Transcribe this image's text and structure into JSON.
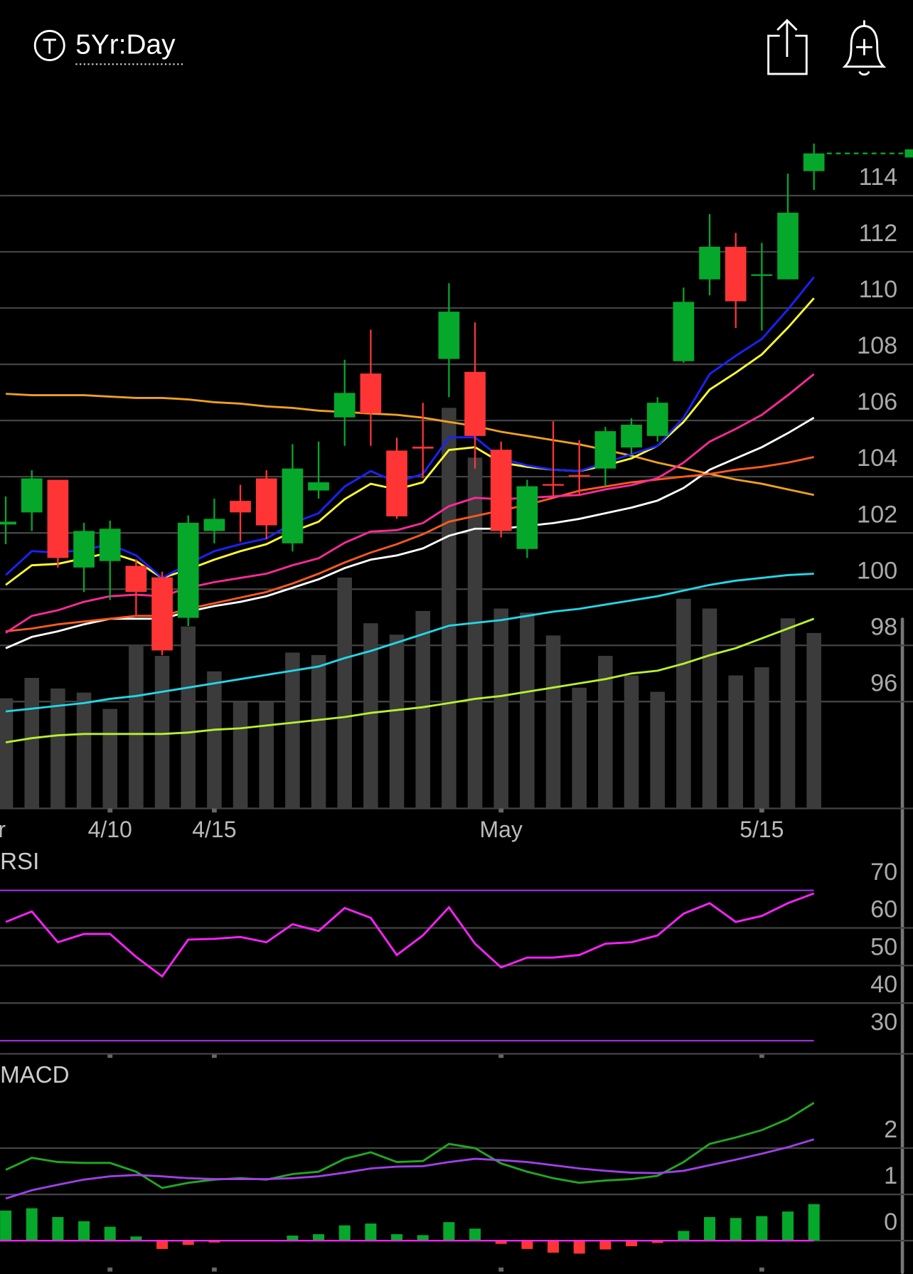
{
  "header": {
    "timeframe": "5Yr:Day"
  },
  "chart_data": [
    {
      "type": "candlestick",
      "categories": [
        "r",
        null,
        null,
        null,
        "4/10",
        null,
        null,
        null,
        "4/15",
        null,
        null,
        null,
        null,
        null,
        null,
        null,
        null,
        null,
        null,
        "May",
        null,
        null,
        null,
        null,
        null,
        null,
        null,
        null,
        null,
        "5/15",
        null,
        null
      ],
      "open": [
        102.3,
        102.73,
        103.89,
        100.77,
        101.0,
        100.83,
        100.42,
        98.98,
        102.07,
        103.14,
        103.94,
        101.63,
        103.51,
        106.11,
        107.67,
        104.93,
        105.07,
        108.19,
        107.73,
        104.96,
        101.43,
        103.74,
        104.06,
        104.29,
        105.04,
        105.45,
        108.11,
        111.02,
        112.18,
        111.15,
        111.02,
        114.87
      ],
      "high": [
        103.3,
        104.23,
        103.89,
        102.36,
        102.44,
        101.06,
        100.62,
        102.62,
        103.22,
        103.71,
        104.23,
        105.16,
        105.25,
        108.16,
        109.23,
        105.39,
        106.63,
        110.88,
        109.49,
        105.25,
        103.89,
        105.97,
        105.3,
        105.77,
        106.08,
        106.83,
        110.73,
        113.34,
        112.67,
        112.32,
        114.78,
        115.85
      ],
      "low": [
        101.6,
        102.07,
        100.77,
        99.9,
        99.61,
        99.03,
        97.65,
        98.69,
        101.63,
        101.69,
        101.78,
        101.34,
        103.22,
        105.1,
        105.1,
        102.5,
        103.94,
        106.83,
        104.29,
        101.84,
        101.11,
        103.31,
        103.31,
        103.66,
        104.81,
        105.25,
        108.05,
        110.45,
        109.29,
        109.2,
        111.02,
        114.2
      ],
      "close": [
        102.4,
        103.94,
        101.11,
        102.07,
        102.15,
        99.9,
        97.82,
        102.36,
        102.5,
        102.73,
        102.27,
        104.29,
        103.8,
        106.98,
        106.26,
        102.59,
        105.0,
        109.87,
        105.45,
        102.07,
        103.66,
        103.68,
        104.0,
        105.62,
        105.85,
        106.63,
        110.22,
        112.18,
        110.24,
        111.2,
        113.39,
        115.5
      ],
      "up_color": "#05a82a",
      "down_color": "#ff3535",
      "volume": [
        13.5,
        16.0,
        14.7,
        14.2,
        12.2,
        20.0,
        18.7,
        22.3,
        16.8,
        13.0,
        13.0,
        19.1,
        18.8,
        28.3,
        22.7,
        21.3,
        24.2,
        49.1,
        43.0,
        24.5,
        24.0,
        21.2,
        14.8,
        18.7,
        16.3,
        14.3,
        25.7,
        24.5,
        16.3,
        17.3,
        23.3,
        21.5
      ],
      "volume_color": "#3b3b3b",
      "overlays": [
        {
          "color": "#f0a020",
          "values": [
            106.95,
            106.9,
            106.9,
            106.9,
            106.85,
            106.8,
            106.8,
            106.75,
            106.65,
            106.6,
            106.5,
            106.45,
            106.35,
            106.3,
            106.25,
            106.2,
            106.1,
            105.95,
            105.8,
            105.6,
            105.45,
            105.3,
            105.15,
            104.95,
            104.75,
            104.5,
            104.3,
            104.1,
            103.9,
            103.75,
            103.55,
            103.35
          ]
        },
        {
          "color": "#22d8e8",
          "values": [
            95.65,
            95.75,
            95.85,
            95.95,
            96.1,
            96.2,
            96.35,
            96.5,
            96.65,
            96.8,
            96.95,
            97.1,
            97.25,
            97.55,
            97.8,
            98.1,
            98.4,
            98.7,
            98.8,
            98.9,
            99.05,
            99.2,
            99.3,
            99.45,
            99.6,
            99.75,
            99.95,
            100.15,
            100.3,
            100.4,
            100.5,
            100.55
          ]
        },
        {
          "color": "#b8f030",
          "values": [
            94.55,
            94.7,
            94.8,
            94.85,
            94.85,
            94.85,
            94.85,
            94.9,
            95.0,
            95.05,
            95.15,
            95.25,
            95.35,
            95.45,
            95.6,
            95.7,
            95.8,
            95.95,
            96.1,
            96.2,
            96.35,
            96.5,
            96.65,
            96.8,
            97.0,
            97.1,
            97.35,
            97.65,
            97.9,
            98.25,
            98.6,
            98.95
          ]
        },
        {
          "color": "#ffffff",
          "values": [
            97.9,
            98.3,
            98.5,
            98.75,
            98.95,
            98.95,
            98.95,
            99.2,
            99.4,
            99.55,
            99.75,
            100.05,
            100.35,
            100.75,
            101.05,
            101.2,
            101.45,
            101.9,
            102.15,
            102.15,
            102.25,
            102.35,
            102.5,
            102.7,
            102.9,
            103.15,
            103.6,
            104.25,
            104.65,
            105.05,
            105.55,
            106.1
          ]
        },
        {
          "color": "#ff5a1e",
          "values": [
            98.5,
            98.6,
            98.75,
            98.85,
            98.95,
            99.05,
            99.05,
            99.3,
            99.5,
            99.7,
            99.9,
            100.2,
            100.55,
            100.95,
            101.3,
            101.6,
            101.95,
            102.4,
            102.6,
            102.8,
            103.0,
            103.25,
            103.5,
            103.65,
            103.8,
            103.9,
            104.0,
            104.1,
            104.25,
            104.35,
            104.5,
            104.7
          ]
        },
        {
          "color": "#ff2a9a",
          "values": [
            98.45,
            99.05,
            99.25,
            99.55,
            99.75,
            99.8,
            99.75,
            100.05,
            100.25,
            100.4,
            100.55,
            100.85,
            101.1,
            101.65,
            102.05,
            102.1,
            102.35,
            102.95,
            103.25,
            103.2,
            103.25,
            103.3,
            103.35,
            103.55,
            103.7,
            103.95,
            104.5,
            105.25,
            105.7,
            106.2,
            106.9,
            107.65
          ]
        },
        {
          "color": "#ffff30",
          "values": [
            100.15,
            100.85,
            100.9,
            101.1,
            101.3,
            101.0,
            100.4,
            100.7,
            101.05,
            101.35,
            101.6,
            102.05,
            102.4,
            103.2,
            103.75,
            103.55,
            103.8,
            104.95,
            105.05,
            104.5,
            104.35,
            104.25,
            104.2,
            104.4,
            104.65,
            105.1,
            105.95,
            107.1,
            107.7,
            108.35,
            109.3,
            110.35
          ]
        },
        {
          "color": "#1a22ff",
          "values": [
            100.5,
            101.35,
            101.3,
            101.4,
            101.6,
            101.2,
            100.4,
            100.9,
            101.35,
            101.6,
            101.8,
            102.35,
            102.7,
            103.65,
            104.2,
            103.8,
            104.1,
            105.4,
            105.4,
            104.65,
            104.4,
            104.25,
            104.2,
            104.5,
            104.8,
            105.1,
            106.1,
            107.65,
            108.3,
            108.9,
            109.95,
            111.1
          ]
        }
      ],
      "ylim": [
        92.2,
        117.2
      ],
      "yticks": [
        96,
        98,
        100,
        102,
        104,
        106,
        108,
        110,
        112,
        114
      ],
      "grid": true
    },
    {
      "type": "line",
      "title": "RSI",
      "series": [
        {
          "color": "#ff22ff",
          "values": [
            61.6,
            64.4,
            56.2,
            58.4,
            58.4,
            52.3,
            47.1,
            56.9,
            57.1,
            57.6,
            56.2,
            61.0,
            59.2,
            65.3,
            62.7,
            52.8,
            58.0,
            65.5,
            55.8,
            49.5,
            52.1,
            52.1,
            52.8,
            55.8,
            56.2,
            58.0,
            63.8,
            66.6,
            61.6,
            63.2,
            66.6,
            69.2
          ]
        }
      ],
      "ylim": [
        26.5,
        81
      ],
      "yticks": [
        30,
        40,
        50,
        60,
        70
      ],
      "grid": true,
      "limit_line_color": "#9a30d8"
    },
    {
      "type": "macd",
      "title": "MACD",
      "series": [
        {
          "color": "#22a822",
          "values": [
            1.53,
            1.79,
            1.7,
            1.68,
            1.68,
            1.49,
            1.14,
            1.25,
            1.32,
            1.35,
            1.32,
            1.44,
            1.49,
            1.77,
            1.91,
            1.7,
            1.72,
            2.09,
            2.0,
            1.67,
            1.49,
            1.35,
            1.25,
            1.3,
            1.33,
            1.4,
            1.7,
            2.09,
            2.23,
            2.39,
            2.63,
            2.98
          ]
        },
        {
          "color": "#a040e8",
          "values": [
            0.91,
            1.09,
            1.21,
            1.32,
            1.39,
            1.42,
            1.39,
            1.35,
            1.33,
            1.33,
            1.33,
            1.35,
            1.39,
            1.47,
            1.56,
            1.6,
            1.61,
            1.7,
            1.77,
            1.74,
            1.7,
            1.63,
            1.56,
            1.51,
            1.47,
            1.46,
            1.51,
            1.63,
            1.75,
            1.88,
            2.02,
            2.19
          ]
        }
      ],
      "histogram": {
        "values": [
          0.65,
          0.7,
          0.51,
          0.42,
          0.3,
          0.09,
          -0.18,
          -0.09,
          -0.04,
          0.0,
          0.0,
          0.11,
          0.14,
          0.33,
          0.37,
          0.14,
          0.12,
          0.4,
          0.26,
          -0.07,
          -0.18,
          -0.26,
          -0.28,
          -0.19,
          -0.12,
          -0.05,
          0.21,
          0.51,
          0.49,
          0.53,
          0.63,
          0.79
        ],
        "up_color": "#05a82a",
        "down_color": "#ff3535"
      },
      "zero_line_color": "#ff22ff",
      "ylim": [
        -0.58,
        3.81
      ],
      "yticks": [
        0,
        1,
        2
      ],
      "grid": true
    }
  ]
}
